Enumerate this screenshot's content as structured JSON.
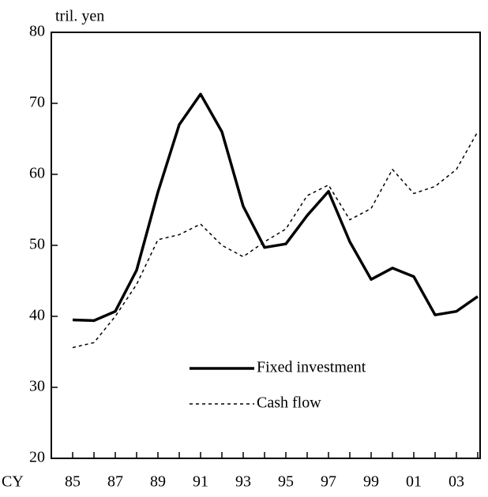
{
  "chart_data": {
    "type": "line",
    "y_unit_label": "tril. yen",
    "x_axis_label": "CY",
    "categories": [
      "85",
      null,
      "87",
      null,
      "89",
      null,
      "91",
      null,
      "93",
      null,
      "95",
      null,
      "97",
      null,
      "99",
      null,
      "01",
      null,
      "03",
      null
    ],
    "series": [
      {
        "name": "Fixed investment",
        "color": "#000000",
        "style": "solid",
        "values": [
          39.5,
          39.4,
          40.7,
          46.5,
          57.5,
          67,
          71.3,
          66,
          55.5,
          49.7,
          50.2,
          54.2,
          57.6,
          50.5,
          45.2,
          46.8,
          45.6,
          40.2,
          40.7,
          42.8
        ]
      },
      {
        "name": "Cash flow",
        "color": "#000000",
        "style": "dashed",
        "values": [
          35.6,
          36.3,
          40,
          44.5,
          50.8,
          51.5,
          53,
          50,
          48.4,
          50.5,
          52.3,
          57,
          58.5,
          53.6,
          55.2,
          60.7,
          57.3,
          58.3,
          60.7,
          66
        ]
      }
    ],
    "ylim": [
      20,
      80
    ],
    "yticks": [
      20,
      30,
      40,
      50,
      60,
      70,
      80
    ]
  }
}
